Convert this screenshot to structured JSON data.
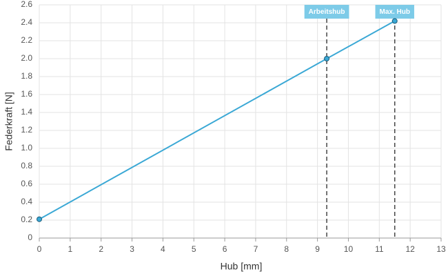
{
  "chart_data": {
    "type": "line",
    "x_label": "Hub [mm]",
    "y_label": "Federkraft [N]",
    "x": [
      0,
      9.3,
      11.5
    ],
    "series": [
      {
        "name": "Federkraft",
        "color": "#3aa8d5",
        "values": [
          0.21,
          2.0,
          2.42
        ]
      }
    ],
    "xlim": [
      0,
      13
    ],
    "xticks": [
      0,
      1,
      2,
      3,
      4,
      5,
      6,
      7,
      8,
      9,
      10,
      11,
      12,
      13
    ],
    "ylim": [
      0,
      2.6
    ],
    "yticks": [
      0,
      0.2,
      0.4,
      0.6,
      0.8,
      {
        "value": 1,
        "label": "1.0"
      },
      1.2,
      1.4,
      1.6,
      1.8,
      {
        "value": 2,
        "label": "2.0"
      },
      2.2,
      2.4,
      2.6
    ],
    "grid": true,
    "annotations": [
      {
        "x": 9.3,
        "label": "Arbeitshub"
      },
      {
        "x": 11.5,
        "label": "Max. Hub"
      }
    ]
  }
}
